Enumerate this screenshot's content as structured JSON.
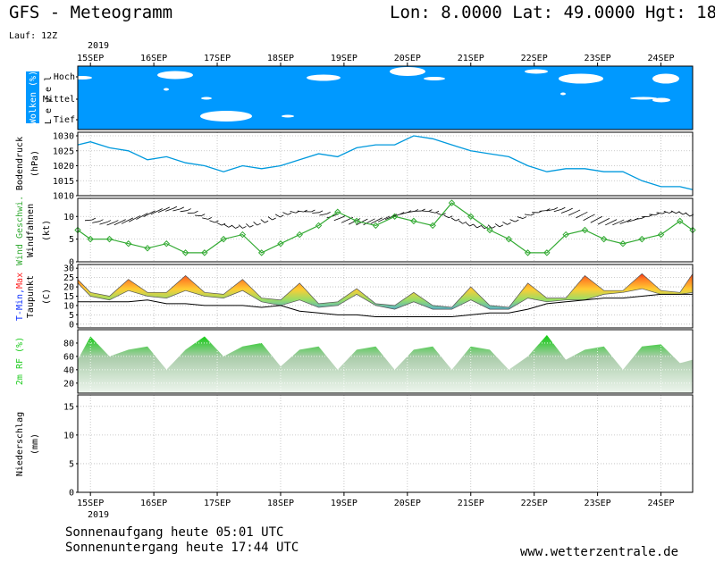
{
  "header": {
    "title": "GFS - Meteogramm",
    "location": "Lon: 8.0000  Lat: 49.0000  Hgt: 18",
    "run": "Lauf: 12Z"
  },
  "footer": {
    "sunrise": "Sonnenaufgang heute 05:01 UTC",
    "sunset": "Sonnenuntergang heute 17:44 UTC",
    "site": "www.wetterzentrale.de"
  },
  "colors": {
    "cloud_bg": "#0099ff",
    "cloud": "#ffffff",
    "pressure": "#0099dd",
    "wind": "#33aa33",
    "dewpoint": "#000000",
    "rh": "#22cc22",
    "tmax": "#ff2222",
    "tmin": "#1133ff"
  },
  "chart_data": {
    "type": "line",
    "x_unit": "day",
    "year": "2019",
    "days": [
      "15SEP",
      "16SEP",
      "17SEP",
      "18SEP",
      "19SEP",
      "20SEP",
      "21SEP",
      "22SEP",
      "23SEP",
      "24SEP"
    ],
    "x_start": 14.8,
    "x_end": 24.5,
    "panels": {
      "clouds": {
        "label": "Wolken (%)",
        "level_label": "L e v e l",
        "levels": [
          "Hoch",
          "Mittel",
          "Tief"
        ]
      },
      "pressure": {
        "ylabel_line1": "Bodendruck",
        "ylabel_line2": "(hPa)",
        "ylim": [
          1010,
          1030
        ],
        "ticks": [
          1010,
          1015,
          1020,
          1025,
          1030
        ],
        "x": [
          14.8,
          15.0,
          15.3,
          15.6,
          15.9,
          16.2,
          16.5,
          16.8,
          17.1,
          17.4,
          17.7,
          18.0,
          18.3,
          18.6,
          18.9,
          19.2,
          19.5,
          19.8,
          20.1,
          20.4,
          20.7,
          21.0,
          21.3,
          21.6,
          21.9,
          22.2,
          22.5,
          22.8,
          23.1,
          23.4,
          23.7,
          24.0,
          24.3,
          24.5
        ],
        "values": [
          1027,
          1028,
          1026,
          1025,
          1022,
          1023,
          1021,
          1020,
          1018,
          1020,
          1019,
          1020,
          1022,
          1024,
          1023,
          1026,
          1027,
          1027,
          1030,
          1029,
          1027,
          1025,
          1024,
          1023,
          1020,
          1018,
          1019,
          1019,
          1018,
          1018,
          1015,
          1013,
          1013,
          1012
        ]
      },
      "wind": {
        "ylabel_line1": "Wind Geschwi.",
        "ylabel_line2": "Windfahnen",
        "ylabel_line3": "(kt)",
        "ylim": [
          0,
          14
        ],
        "ticks": [
          0,
          5,
          10
        ],
        "x": [
          14.8,
          15.0,
          15.3,
          15.6,
          15.9,
          16.2,
          16.5,
          16.8,
          17.1,
          17.4,
          17.7,
          18.0,
          18.3,
          18.6,
          18.9,
          19.2,
          19.5,
          19.8,
          20.1,
          20.4,
          20.7,
          21.0,
          21.3,
          21.6,
          21.9,
          22.2,
          22.5,
          22.8,
          23.1,
          23.4,
          23.7,
          24.0,
          24.3,
          24.5
        ],
        "values": [
          7,
          5,
          5,
          4,
          3,
          4,
          2,
          2,
          5,
          6,
          2,
          4,
          6,
          8,
          11,
          9,
          8,
          10,
          9,
          8,
          13,
          10,
          7,
          5,
          2,
          2,
          6,
          7,
          5,
          4,
          5,
          6,
          9,
          7
        ]
      },
      "temperature": {
        "ylabel_tmin": "T-Min,",
        "ylabel_tmax": "Max",
        "ylabel_line2": "Taupunkt",
        "ylabel_line3": "(C)",
        "ylim": [
          -2,
          32
        ],
        "ticks": [
          0,
          5,
          10,
          15,
          20,
          25,
          30
        ],
        "x": [
          14.8,
          15.0,
          15.3,
          15.6,
          15.9,
          16.2,
          16.5,
          16.8,
          17.1,
          17.4,
          17.7,
          18.0,
          18.3,
          18.6,
          18.9,
          19.2,
          19.5,
          19.8,
          20.1,
          20.4,
          20.7,
          21.0,
          21.3,
          21.6,
          21.9,
          22.2,
          22.5,
          22.8,
          23.1,
          23.4,
          23.7,
          24.0,
          24.3,
          24.5
        ],
        "tmin": [
          22,
          15,
          13,
          18,
          15,
          14,
          18,
          15,
          14,
          18,
          12,
          10,
          13,
          9,
          10,
          16,
          10,
          8,
          12,
          8,
          8,
          13,
          8,
          8,
          14,
          12,
          13,
          13,
          16,
          17,
          19,
          16,
          16,
          17
        ],
        "tmax": [
          24,
          17,
          15,
          24,
          17,
          17,
          26,
          17,
          16,
          24,
          14,
          13,
          22,
          11,
          12,
          19,
          11,
          10,
          17,
          10,
          9,
          20,
          10,
          9,
          22,
          14,
          14,
          26,
          18,
          18,
          27,
          18,
          17,
          27
        ],
        "dewpoint": [
          12,
          12,
          12,
          12,
          13,
          11,
          11,
          10,
          10,
          10,
          9,
          10,
          7,
          6,
          5,
          5,
          4,
          4,
          4,
          4,
          4,
          5,
          6,
          6,
          8,
          11,
          12,
          13,
          14,
          14,
          15,
          16,
          16,
          16
        ]
      },
      "rh": {
        "ylabel": "2m RF (%)",
        "ylim": [
          5,
          100
        ],
        "ticks": [
          20,
          40,
          60,
          80
        ],
        "x": [
          14.8,
          15.0,
          15.3,
          15.6,
          15.9,
          16.2,
          16.5,
          16.8,
          17.1,
          17.4,
          17.7,
          18.0,
          18.3,
          18.6,
          18.9,
          19.2,
          19.5,
          19.8,
          20.1,
          20.4,
          20.7,
          21.0,
          21.3,
          21.6,
          21.9,
          22.2,
          22.5,
          22.8,
          23.1,
          23.4,
          23.7,
          24.0,
          24.3,
          24.5
        ],
        "values": [
          55,
          90,
          60,
          70,
          75,
          40,
          70,
          90,
          60,
          75,
          80,
          45,
          70,
          75,
          40,
          70,
          75,
          40,
          70,
          75,
          40,
          75,
          70,
          40,
          60,
          92,
          55,
          70,
          75,
          40,
          75,
          78,
          50,
          55
        ]
      },
      "precip": {
        "ylabel_line1": "Niederschlag",
        "ylabel_line2": "(mm)",
        "ylim": [
          0,
          17
        ],
        "ticks": [
          0,
          5,
          10,
          15
        ],
        "values": []
      }
    }
  }
}
